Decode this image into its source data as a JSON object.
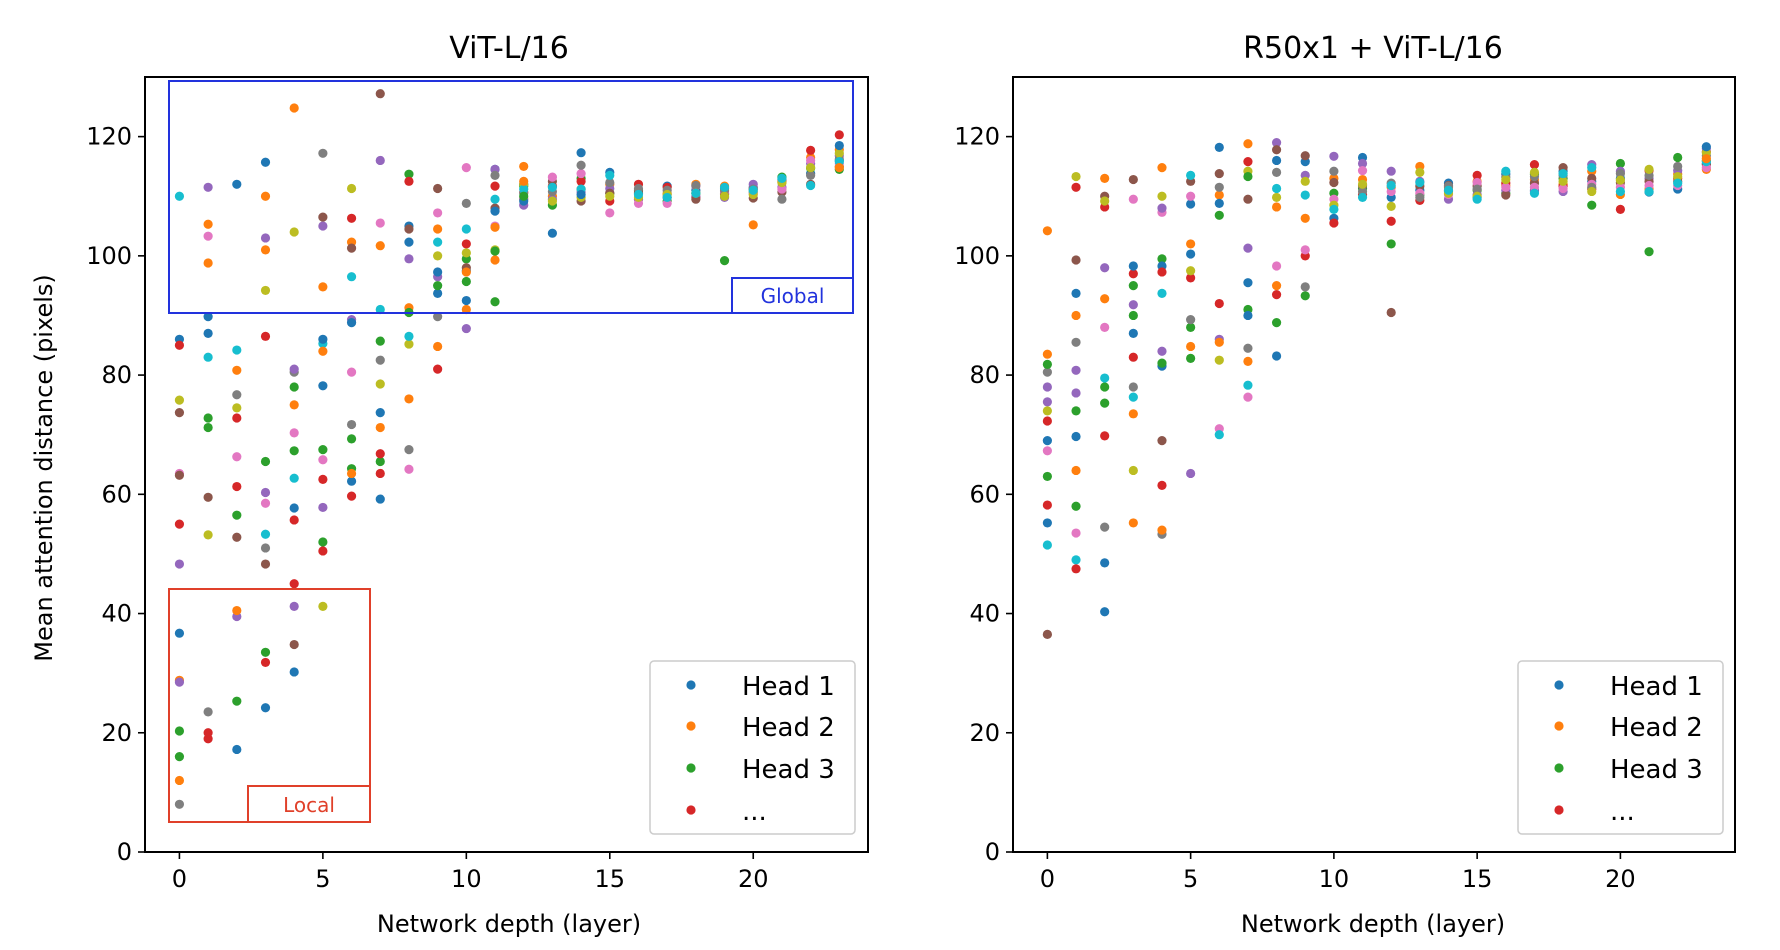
{
  "palette": [
    "#1f77b4",
    "#ff7f0e",
    "#2ca02c",
    "#d62728",
    "#9467bd",
    "#8c564b",
    "#e377c2",
    "#7f7f7f",
    "#bcbd22",
    "#17becf"
  ],
  "chart_data": [
    {
      "type": "scatter",
      "title": "ViT-L/16",
      "xlabel": "Network depth (layer)",
      "ylabel": "Mean attention distance (pixels)",
      "xlim": [
        -1.2,
        24
      ],
      "ylim": [
        0,
        130
      ],
      "xticks": [
        0,
        5,
        10,
        15,
        20
      ],
      "yticks": [
        0,
        20,
        40,
        60,
        80,
        100,
        120
      ],
      "legend": {
        "position": "lower-right",
        "entries": [
          "Head 1",
          "Head 2",
          "Head 3",
          "..."
        ]
      },
      "annotations": [
        {
          "label": "Global",
          "color": "#2233dd",
          "x_range": [
            -0.3,
            23.5
          ],
          "y_range": [
            90,
            129
          ]
        },
        {
          "label": "Local",
          "color": "#e0402a",
          "x_range": [
            -0.3,
            6.7
          ],
          "y_range": [
            5,
            44
          ]
        }
      ],
      "layers": [
        [
          36.7,
          28.8,
          20.3,
          55,
          48.3,
          73.7,
          63.5,
          8,
          75.8,
          110,
          86,
          12,
          16,
          85,
          28.5,
          63.2
        ],
        [
          87,
          105.3,
          71.2,
          19,
          111.5,
          59.5,
          103.3,
          23.5,
          53.2,
          83,
          89.8,
          98.8,
          72.8,
          20
        ],
        [
          17.2,
          80.8,
          25.3,
          72.8,
          39.5,
          52.8,
          66.3,
          76.7,
          74.5,
          84.2,
          112,
          40.5,
          56.5,
          61.3
        ],
        [
          24.2,
          101,
          33.5,
          31.8,
          60.3,
          48.3,
          58.5,
          51,
          94.2,
          53.3,
          115.7,
          110,
          65.5,
          86.5,
          103
        ],
        [
          57.7,
          75,
          78,
          45,
          41.2,
          34.8,
          70.3,
          80.5,
          104,
          62.7,
          30.2,
          124.8,
          67.3,
          55.7,
          81
        ],
        [
          78.2,
          94.8,
          52,
          50.5,
          57.8,
          106.5,
          65.8,
          117.2,
          41.2,
          85.3,
          86,
          84,
          67.5,
          62.5,
          105
        ],
        [
          62.2,
          102.3,
          64.3,
          59.7,
          89.3,
          101.3,
          80.5,
          71.7,
          111.3,
          96.5,
          88.8,
          63.5,
          69.3,
          106.3
        ],
        [
          73.7,
          101.7,
          65.5,
          66.8,
          116,
          127.2,
          105.5,
          82.5,
          78.5,
          91,
          59.2,
          71.2,
          85.7,
          63.5
        ],
        [
          105,
          76,
          113.7,
          112.5,
          99.5,
          104.5,
          64.2,
          67.5,
          85.2,
          86.5,
          102.3,
          91.3,
          90.5
        ],
        [
          93.7,
          84.8,
          95,
          81,
          96.5,
          111.3,
          107.2,
          89.8,
          100,
          102.3,
          97.3,
          104.5
        ],
        [
          97.5,
          91,
          99.5,
          102,
          87.8,
          98,
          114.8,
          108.8,
          100.5,
          104.5,
          92.5,
          97.3,
          95.7
        ],
        [
          114.5,
          99.3,
          92.3,
          111.7,
          114.5,
          108,
          105,
          113.5,
          101,
          109.5,
          107.5,
          104.8,
          100.8
        ],
        [
          112,
          115,
          111.7,
          110.7,
          108.5,
          109.5,
          109.7,
          110.5,
          112,
          111.2,
          109.2,
          112.5,
          110
        ],
        [
          103.8,
          110,
          108.5,
          111.7,
          109.5,
          112.5,
          113.2,
          110.8,
          109.2,
          111.5
        ],
        [
          117.3,
          111.2,
          113,
          112.5,
          110.7,
          109.2,
          113.8,
          115.2,
          109.8,
          111.2,
          110.3
        ],
        [
          114,
          112,
          110.5,
          109.2,
          111.3,
          110.5,
          107.2,
          112.3,
          110,
          113.5
        ],
        [
          110.5,
          109.5,
          111,
          112,
          109.5,
          110.7,
          108.8,
          111.3,
          109.8,
          110.3
        ],
        [
          111.7,
          110.5,
          109.2,
          111.5,
          110.3,
          109.8,
          108.8,
          111,
          110.3,
          109.8
        ],
        [
          111,
          112,
          110.5,
          109.8,
          110,
          109.5,
          111.7,
          111.8,
          110.5,
          110.5
        ],
        [
          111.3,
          111.7,
          99.2,
          110.5,
          109.8,
          110.3,
          110.8,
          111,
          110,
          111.5
        ],
        [
          111.5,
          105.2,
          110.7,
          111.2,
          112,
          109.7,
          110.5,
          111.2,
          110.3,
          111
        ],
        [
          112.8,
          112.3,
          113.2,
          112.5,
          111.5,
          110.7,
          111.2,
          109.5,
          112.3,
          113
        ],
        [
          113.8,
          116.5,
          114.7,
          117.7,
          115.5,
          112,
          116,
          113.5,
          114.8,
          111.8
        ],
        [
          116,
          117.8,
          114.5,
          120.3,
          116.8,
          115,
          115.5,
          116.2,
          117.2,
          115.8,
          118.5,
          114.8
        ]
      ]
    },
    {
      "type": "scatter",
      "title": "R50x1 + ViT-L/16",
      "xlabel": "Network depth (layer)",
      "ylabel": "",
      "xlim": [
        -1.2,
        24
      ],
      "ylim": [
        0,
        130
      ],
      "xticks": [
        0,
        5,
        10,
        15,
        20
      ],
      "yticks": [
        0,
        20,
        40,
        60,
        80,
        100,
        120
      ],
      "legend": {
        "position": "lower-right",
        "entries": [
          "Head 1",
          "Head 2",
          "Head 3",
          "..."
        ]
      },
      "layers": [
        [
          69,
          83.5,
          63,
          58.2,
          75.5,
          36.5,
          67.3,
          80.5,
          74,
          51.5,
          55.2,
          104.2,
          81.8,
          72.3,
          78
        ],
        [
          69.7,
          64,
          58,
          111.5,
          80.8,
          99.3,
          53.5,
          85.5,
          113.3,
          49,
          93.7,
          90,
          74,
          47.5,
          77
        ],
        [
          48.5,
          113,
          78,
          108.2,
          98,
          110,
          88,
          54.5,
          109.2,
          79.5,
          40.3,
          92.8,
          75.3,
          69.8
        ],
        [
          87,
          73.5,
          90,
          97,
          91.8,
          112.8,
          109.5,
          78,
          64,
          76.3,
          98.3,
          55.2,
          95,
          83
        ],
        [
          81.5,
          114.8,
          99.5,
          61.5,
          84,
          69,
          107.3,
          53.3,
          110,
          93.7,
          98.3,
          54,
          82,
          97.3,
          108
        ],
        [
          108.7,
          102,
          88,
          96.3,
          63.5,
          112.5,
          110,
          89.3,
          97.5,
          113.5,
          100.3,
          84.8,
          82.8
        ],
        [
          118.2,
          110.2,
          106.8,
          92,
          86,
          113.8,
          71,
          111.5,
          82.5,
          70,
          108.8,
          85.5
        ],
        [
          95.5,
          118.8,
          91,
          115.8,
          101.3,
          109.5,
          76.3,
          84.5,
          114.2,
          78.3,
          90,
          82.3,
          113.3
        ],
        [
          83.2,
          108.2,
          88.8,
          93.5,
          119,
          117.8,
          98.3,
          114,
          109.8,
          111.3,
          116,
          95
        ],
        [
          115.8,
          106.3,
          93.3,
          100,
          113.5,
          116.8,
          101,
          94.8,
          112.5,
          110.2
        ],
        [
          106.3,
          113,
          110.5,
          105.5,
          116.7,
          112.3,
          109.5,
          114.2,
          108.5,
          107.8
        ],
        [
          116.5,
          112.8,
          111.3,
          110.3,
          115.5,
          111.8,
          114.3,
          110.8,
          112,
          109.8
        ],
        [
          109.8,
          111.5,
          102,
          105.8,
          114.2,
          90.5,
          110.8,
          112.2,
          108.3,
          111.8
        ],
        [
          111,
          115,
          110.2,
          109.3,
          112.5,
          111.7,
          110.5,
          109.8,
          114,
          112.3
        ],
        [
          112.2,
          111.5,
          110.8,
          111,
          109.5,
          111.8,
          110.3,
          111.7,
          110.5,
          111
        ],
        [
          109.8,
          112.5,
          111,
          113.5,
          110.3,
          111.7,
          112.3,
          111.2,
          110,
          109.5
        ],
        [
          113.7,
          111.8,
          110.5,
          112.2,
          111,
          110.2,
          111.5,
          113.2,
          112.8,
          114.2
        ],
        [
          111,
          112.8,
          113.7,
          115.3,
          110.8,
          112.2,
          111.5,
          113.3,
          114,
          110.5
        ],
        [
          114.2,
          112,
          113,
          111.7,
          110.8,
          114.8,
          111.3,
          113.5,
          112.5,
          113.8
        ],
        [
          112.5,
          114.2,
          108.5,
          111.2,
          115.3,
          113,
          112,
          111.5,
          110.8,
          114.8
        ],
        [
          113,
          110.3,
          115.5,
          107.8,
          114.2,
          112.3,
          111.5,
          113.8,
          112.7,
          110.8
        ],
        [
          110.7,
          111.2,
          100.7,
          114.3,
          113,
          112.5,
          111.8,
          113.5,
          114.5,
          110.8
        ],
        [
          111.2,
          113.7,
          116.5,
          113,
          114.3,
          112.5,
          111.8,
          115,
          113.3,
          112.2
        ],
        [
          115.5,
          114.5,
          116,
          117.5,
          118,
          115.3,
          114.8,
          116.8,
          117.3,
          115.8,
          118.3,
          116.3
        ]
      ]
    }
  ]
}
